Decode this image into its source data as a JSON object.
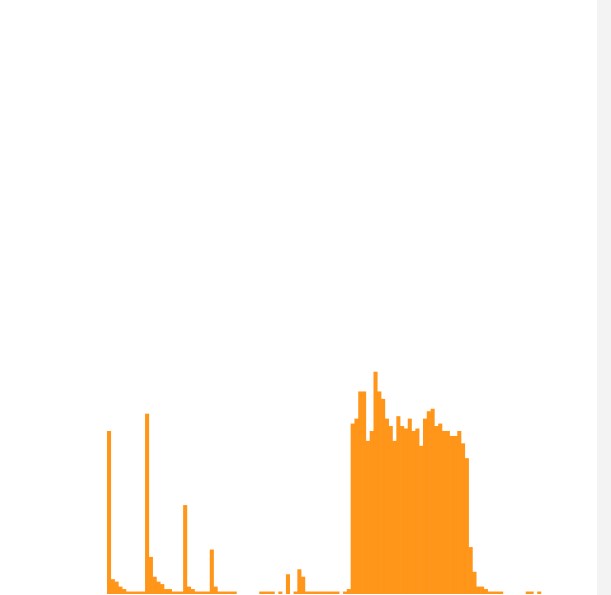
{
  "chart_data": {
    "type": "bar",
    "title": "",
    "xlabel": "",
    "ylabel": "",
    "grid": false,
    "legend": "none",
    "color": "#ff9519",
    "ylim": [
      0,
      100
    ],
    "values": [
      66,
      6,
      5,
      3,
      2,
      1,
      1,
      1,
      1,
      1,
      73,
      15,
      7,
      5,
      4,
      2,
      2,
      1,
      1,
      1,
      36,
      3,
      2,
      1,
      1,
      1,
      1,
      18,
      3,
      1,
      1,
      1,
      1,
      1,
      0,
      0,
      0,
      0,
      0,
      0,
      1,
      1,
      1,
      1,
      0,
      1,
      0,
      8,
      0,
      1,
      10,
      7,
      1,
      1,
      1,
      1,
      1,
      1,
      1,
      1,
      1,
      0,
      1,
      2,
      69,
      71,
      82,
      82,
      62,
      66,
      90,
      82,
      79,
      71,
      68,
      62,
      72,
      68,
      67,
      71,
      66,
      67,
      60,
      71,
      74,
      75,
      68,
      69,
      66,
      66,
      64,
      64,
      66,
      61,
      55,
      19,
      9,
      3,
      3,
      2,
      1,
      1,
      1,
      1,
      0,
      0,
      0,
      0,
      0,
      0,
      1,
      1,
      0,
      1
    ]
  }
}
